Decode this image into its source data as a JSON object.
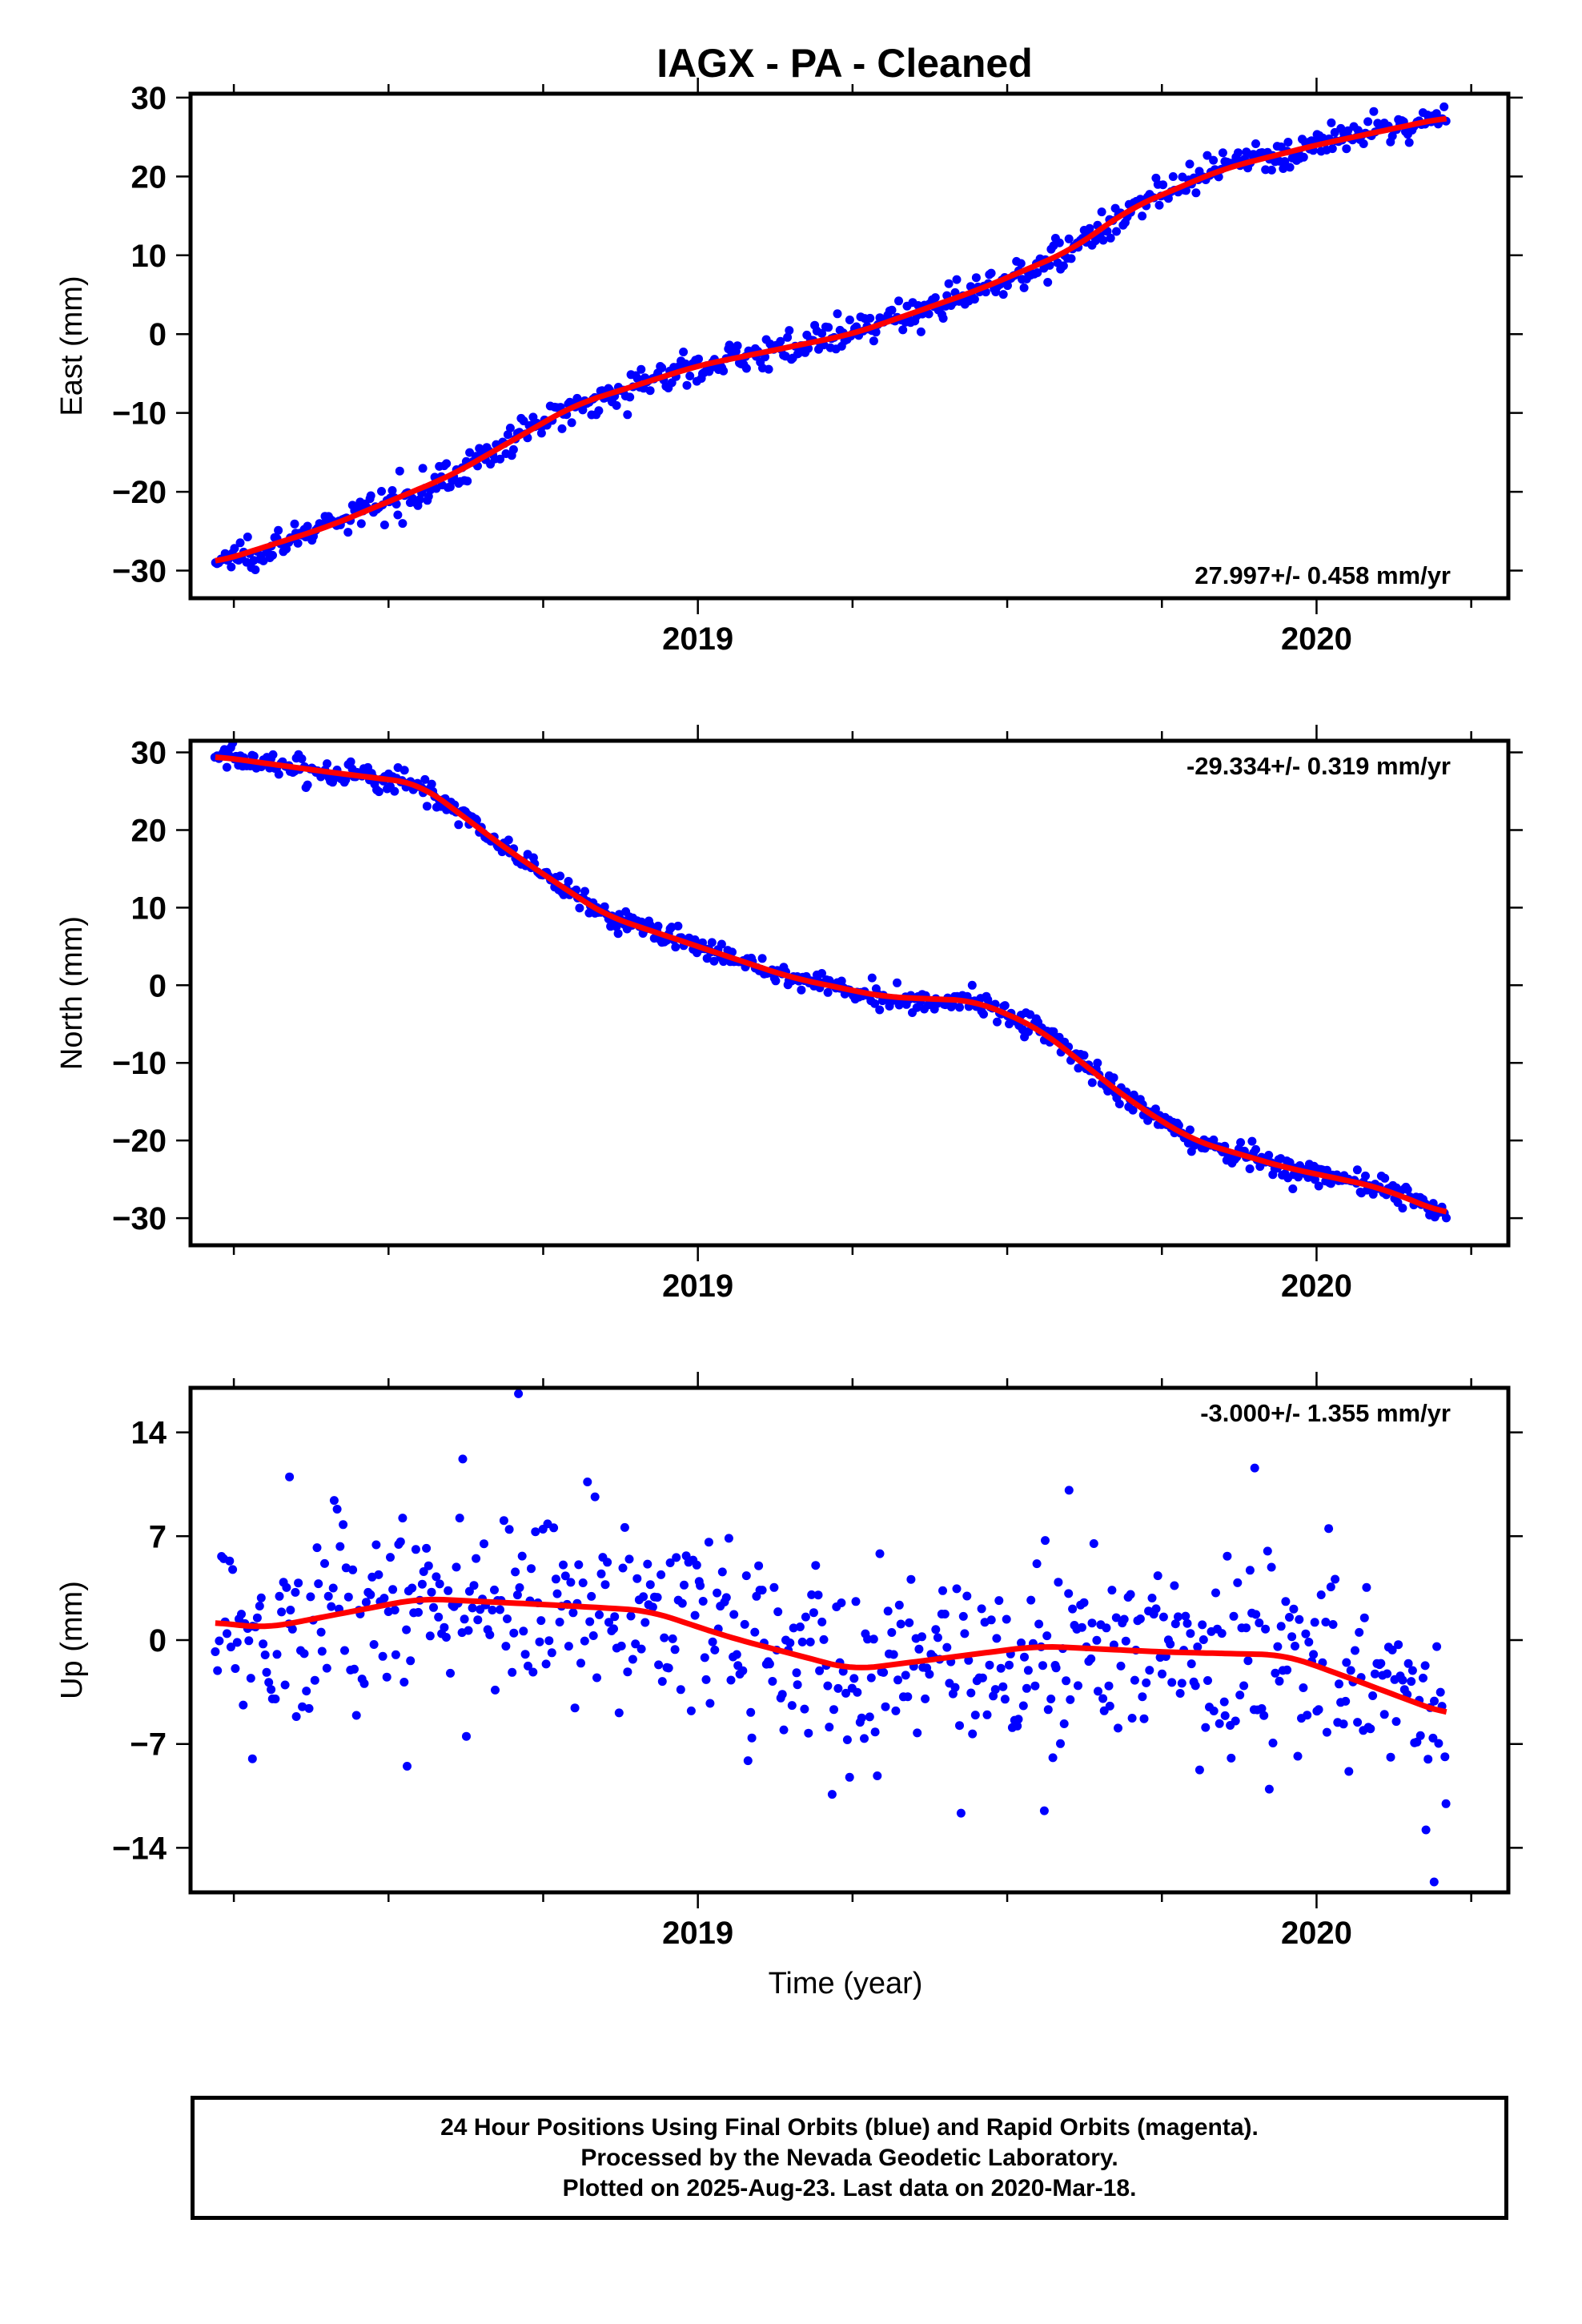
{
  "title": "IAGX  - PA - Cleaned",
  "colors": {
    "final_orbits": "#0000ff",
    "fit_line": "#ff0000",
    "axis": "#000000",
    "background": "#ffffff"
  },
  "footer": {
    "line1": "24 Hour Positions Using Final Orbits (blue) and Rapid Orbits (magenta).",
    "line2": "Processed by the Nevada Geodetic Laboratory.",
    "line3": "Plotted on 2025-Aug-23. Last data on 2020-Mar-18."
  },
  "chart_data": [
    {
      "type": "scatter",
      "panel": "east",
      "ylabel": "East (mm)",
      "xlabel": "",
      "xlim": [
        2018.18,
        2020.31
      ],
      "ylim": [
        -33.5,
        30.5
      ],
      "xticks": [
        2019,
        2020
      ],
      "xtick_labels": [
        "2019",
        "2020"
      ],
      "yticks": [
        30,
        20,
        10,
        0,
        -10,
        -20,
        -30
      ],
      "ytick_labels": [
        "30",
        "20",
        "10",
        "0",
        "−10",
        "−20",
        "−30"
      ],
      "rate_label": "27.997+/- 0.458 mm/yr",
      "rate_position": "bottom-right",
      "series": [
        {
          "role": "final-orbit-positions",
          "color": "#0000ff",
          "x_start": 2018.22,
          "x_end": 2020.21,
          "count": 640,
          "noise_mm": 1.0,
          "trend": [
            [
              2018.22,
              -29.0
            ],
            [
              2018.4,
              -24.5
            ],
            [
              2018.6,
              -18.0
            ],
            [
              2018.8,
              -9.0
            ],
            [
              2019.0,
              -4.0
            ],
            [
              2019.25,
              0.0
            ],
            [
              2019.45,
              5.5
            ],
            [
              2019.6,
              10.5
            ],
            [
              2019.7,
              16.0
            ],
            [
              2019.85,
              21.0
            ],
            [
              2020.0,
              24.0
            ],
            [
              2020.21,
              27.5
            ]
          ]
        },
        {
          "role": "fit-line",
          "color": "#ff0000",
          "trend": [
            [
              2018.22,
              -29.0
            ],
            [
              2018.4,
              -24.5
            ],
            [
              2018.6,
              -18.0
            ],
            [
              2018.8,
              -9.0
            ],
            [
              2019.0,
              -4.0
            ],
            [
              2019.25,
              0.0
            ],
            [
              2019.45,
              5.5
            ],
            [
              2019.6,
              10.5
            ],
            [
              2019.7,
              16.0
            ],
            [
              2019.85,
              21.0
            ],
            [
              2020.0,
              24.0
            ],
            [
              2020.21,
              27.5
            ]
          ]
        }
      ]
    },
    {
      "type": "scatter",
      "panel": "north",
      "ylabel": "North (mm)",
      "xlabel": "",
      "xlim": [
        2018.18,
        2020.31
      ],
      "ylim": [
        -33.5,
        31.5
      ],
      "xticks": [
        2019,
        2020
      ],
      "xtick_labels": [
        "2019",
        "2020"
      ],
      "yticks": [
        30,
        20,
        10,
        0,
        -10,
        -20,
        -30
      ],
      "ytick_labels": [
        "30",
        "20",
        "10",
        "0",
        "−10",
        "−20",
        "−30"
      ],
      "rate_label": "-29.334+/- 0.319 mm/yr",
      "rate_position": "top-right",
      "series": [
        {
          "role": "final-orbit-positions",
          "color": "#0000ff",
          "x_start": 2018.22,
          "x_end": 2020.21,
          "count": 640,
          "noise_mm": 0.8,
          "trend": [
            [
              2018.22,
              29.5
            ],
            [
              2018.4,
              27.5
            ],
            [
              2018.55,
              26.0
            ],
            [
              2018.7,
              17.0
            ],
            [
              2018.85,
              9.0
            ],
            [
              2019.0,
              5.0
            ],
            [
              2019.15,
              1.0
            ],
            [
              2019.3,
              -1.5
            ],
            [
              2019.45,
              -2.0
            ],
            [
              2019.55,
              -5.5
            ],
            [
              2019.7,
              -15.0
            ],
            [
              2019.8,
              -20.0
            ],
            [
              2019.95,
              -23.5
            ],
            [
              2020.1,
              -26.0
            ],
            [
              2020.21,
              -29.5
            ]
          ]
        },
        {
          "role": "fit-line",
          "color": "#ff0000",
          "trend": [
            [
              2018.22,
              29.5
            ],
            [
              2018.4,
              27.5
            ],
            [
              2018.55,
              26.0
            ],
            [
              2018.7,
              17.0
            ],
            [
              2018.85,
              9.0
            ],
            [
              2019.0,
              5.0
            ],
            [
              2019.15,
              1.0
            ],
            [
              2019.3,
              -1.5
            ],
            [
              2019.45,
              -2.0
            ],
            [
              2019.55,
              -5.5
            ],
            [
              2019.7,
              -15.0
            ],
            [
              2019.8,
              -20.0
            ],
            [
              2019.95,
              -23.5
            ],
            [
              2020.1,
              -26.0
            ],
            [
              2020.21,
              -29.5
            ]
          ]
        }
      ]
    },
    {
      "type": "scatter",
      "panel": "up",
      "ylabel": "Up (mm)",
      "xlabel": "Time (year)",
      "xlim": [
        2018.18,
        2020.31
      ],
      "ylim": [
        -17,
        17
      ],
      "xticks": [
        2019,
        2020
      ],
      "xtick_labels": [
        "2019",
        "2020"
      ],
      "yticks": [
        14,
        7,
        0,
        -7,
        -14
      ],
      "ytick_labels": [
        "14",
        "7",
        "0",
        "−7",
        "−14"
      ],
      "rate_label": "-3.000+/- 1.355 mm/yr",
      "rate_position": "top-right",
      "series": [
        {
          "role": "final-orbit-positions",
          "color": "#0000ff",
          "x_start": 2018.22,
          "x_end": 2020.21,
          "count": 620,
          "noise_mm": 3.2,
          "outliers": [
            [
              2018.71,
              16.6
            ],
            [
              2018.62,
              12.2
            ],
            [
              2019.9,
              11.6
            ],
            [
              2018.34,
              11.0
            ],
            [
              2019.6,
              10.1
            ],
            [
              2018.53,
              -8.5
            ],
            [
              2019.56,
              -11.5
            ],
            [
              2020.19,
              -16.3
            ],
            [
              2018.28,
              -8.0
            ]
          ],
          "trend": [
            [
              2018.22,
              1.2
            ],
            [
              2018.3,
              0.8
            ],
            [
              2018.4,
              1.6
            ],
            [
              2018.55,
              2.8
            ],
            [
              2018.75,
              2.4
            ],
            [
              2018.92,
              2.0
            ],
            [
              2019.05,
              0.2
            ],
            [
              2019.25,
              -2.0
            ],
            [
              2019.4,
              -1.2
            ],
            [
              2019.55,
              -0.4
            ],
            [
              2019.75,
              -0.8
            ],
            [
              2019.95,
              -1.0
            ],
            [
              2020.05,
              -2.5
            ],
            [
              2020.21,
              -5.0
            ]
          ]
        },
        {
          "role": "fit-line",
          "color": "#ff0000",
          "trend": [
            [
              2018.22,
              1.2
            ],
            [
              2018.3,
              0.8
            ],
            [
              2018.4,
              1.6
            ],
            [
              2018.55,
              2.8
            ],
            [
              2018.75,
              2.4
            ],
            [
              2018.92,
              2.0
            ],
            [
              2019.05,
              0.2
            ],
            [
              2019.25,
              -2.0
            ],
            [
              2019.4,
              -1.2
            ],
            [
              2019.55,
              -0.4
            ],
            [
              2019.75,
              -0.8
            ],
            [
              2019.95,
              -1.0
            ],
            [
              2020.05,
              -2.5
            ],
            [
              2020.21,
              -5.0
            ]
          ]
        }
      ]
    }
  ]
}
